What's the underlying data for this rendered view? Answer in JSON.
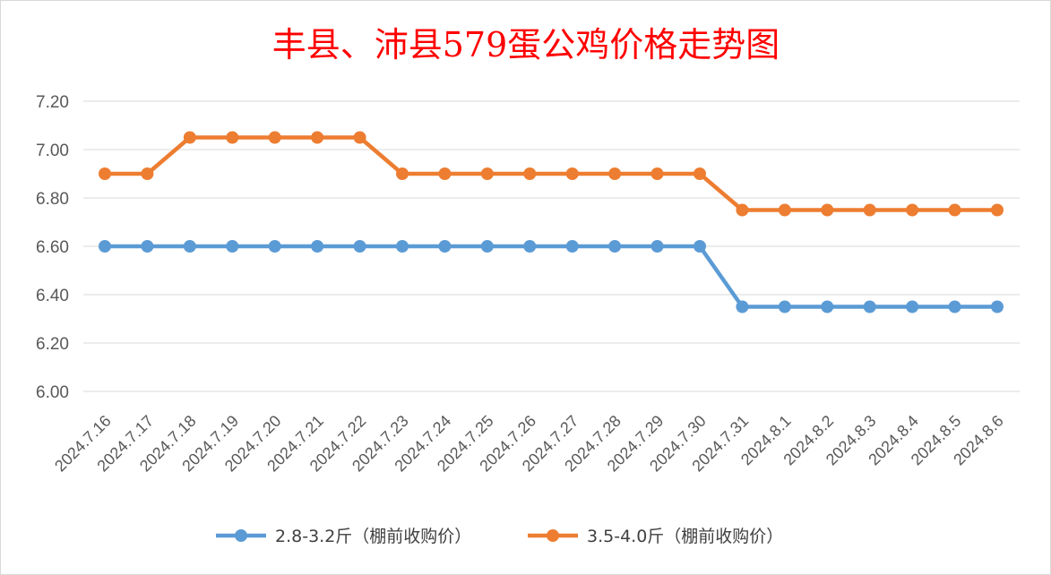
{
  "chart_data": {
    "type": "line",
    "title": "丰县、沛县579蛋公鸡价格走势图",
    "xlabel": "",
    "ylabel": "",
    "categories": [
      "2024.7.16",
      "2024.7.17",
      "2024.7.18",
      "2024.7.19",
      "2024.7.20",
      "2024.7.21",
      "2024.7.22",
      "2024.7.23",
      "2024.7.24",
      "2024.7.25",
      "2024.7.26",
      "2024.7.27",
      "2024.7.28",
      "2024.7.29",
      "2024.7.30",
      "2024.7.31",
      "2024.8.1",
      "2024.8.2",
      "2024.8.3",
      "2024.8.4",
      "2024.8.5",
      "2024.8.6"
    ],
    "ylim": [
      6.0,
      7.2
    ],
    "yticks": [
      "6.00",
      "6.20",
      "6.40",
      "6.60",
      "6.80",
      "7.00",
      "7.20"
    ],
    "grid": true,
    "legend_position": "bottom",
    "series": [
      {
        "name": "2.8-3.2斤（棚前收购价）",
        "color": "#5b9bd5",
        "values": [
          6.6,
          6.6,
          6.6,
          6.6,
          6.6,
          6.6,
          6.6,
          6.6,
          6.6,
          6.6,
          6.6,
          6.6,
          6.6,
          6.6,
          6.6,
          6.35,
          6.35,
          6.35,
          6.35,
          6.35,
          6.35,
          6.35
        ]
      },
      {
        "name": "3.5-4.0斤（棚前收购价）",
        "color": "#ed7d31",
        "values": [
          6.9,
          6.9,
          7.05,
          7.05,
          7.05,
          7.05,
          7.05,
          6.9,
          6.9,
          6.9,
          6.9,
          6.9,
          6.9,
          6.9,
          6.9,
          6.75,
          6.75,
          6.75,
          6.75,
          6.75,
          6.75,
          6.75
        ]
      }
    ]
  }
}
